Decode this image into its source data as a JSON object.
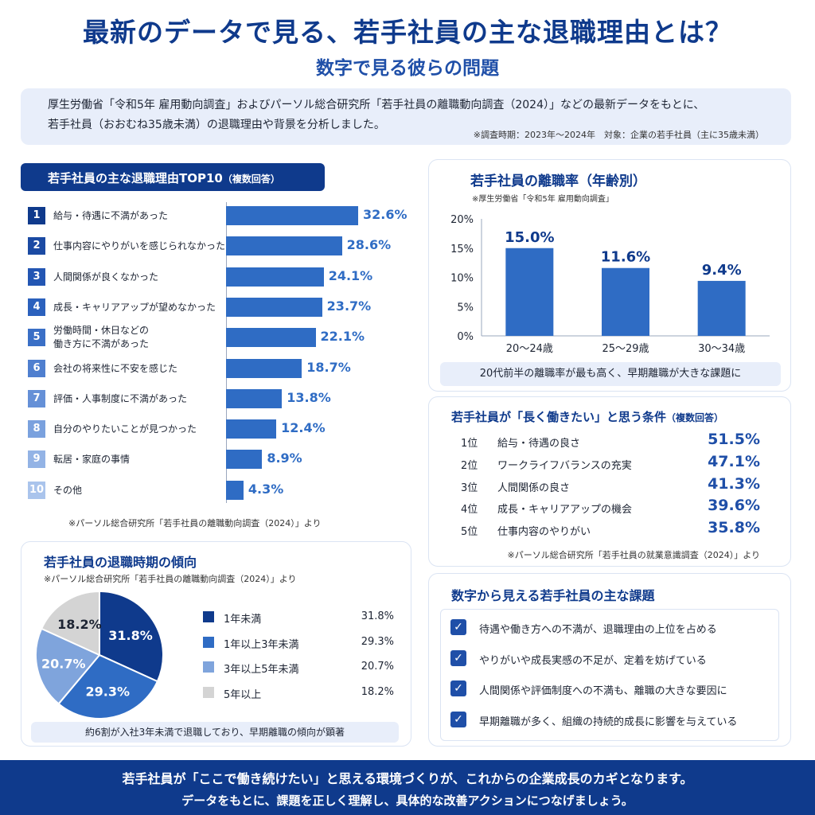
{
  "header": {
    "title": "最新のデータで見る、若手社員の主な退職理由とは？",
    "subtitle": "数字で見る彼らの問題"
  },
  "intro": {
    "line1": "厚生労働省「令和5年 雇用動向調査」およびパーソル総合研究所「若手社員の離職動向調査（2024）」などの最新データをもとに、",
    "line2": "若手社員（おおむね35歳未満）の退職理由や背景を分析しました。",
    "note": "※調査時期：2023年〜2024年　対象：企業の若手社員（主に35歳未満）"
  },
  "top10": {
    "heading": "若手社員の主な退職理由TOP10",
    "heading_note": "（複数回答）",
    "source": "※パーソル総合研究所「若手社員の離職動向調査（2024）」より"
  },
  "age_panel": {
    "title": "若手社員の離職率（年齢別）",
    "source": "※厚生労働省「令和5年 雇用動向調査」",
    "summary": "20代前半の離職率が最も高く、早期離職が大きな課題に"
  },
  "conditions": {
    "title": "若手社員が「長く働きたい」と思う条件",
    "title_note": "（複数回答）",
    "items": [
      {
        "rank": "1位",
        "label": "給与・待遇の良さ",
        "value": "51.5%"
      },
      {
        "rank": "2位",
        "label": "ワークライフバランスの充実",
        "value": "47.1%"
      },
      {
        "rank": "3位",
        "label": "人間関係の良さ",
        "value": "41.3%"
      },
      {
        "rank": "4位",
        "label": "成長・キャリアアップの機会",
        "value": "39.6%"
      },
      {
        "rank": "5位",
        "label": "仕事内容のやりがい",
        "value": "35.8%"
      }
    ],
    "source": "※パーソル総合研究所「若手社員の就業意識調査（2024）」より"
  },
  "timing": {
    "title": "若手社員の退職時期の傾向",
    "source": "※パーソル総合研究所「若手社員の離職動向調査（2024）」より",
    "summary": "約6割が入社3年未満で退職しており、早期離職の傾向が顕著"
  },
  "issues": {
    "title": "数字から見える若手社員の主な課題",
    "check_icon": "✓",
    "items": [
      "待遇や働き方への不満が、退職理由の上位を占める",
      "やりがいや成長実感の不足が、定着を妨げている",
      "人間関係や評価制度への不満も、離職の大きな要因に",
      "早期離職が多く、組織の持続的成長に影響を与えている"
    ]
  },
  "footer": {
    "line1": "若手社員が「ここで働き続けたい」と思える環境づくりが、これからの企業成長のカギとなります。",
    "line2": "データをもとに、課題を正しく理解し、具体的な改善アクションにつなげましょう。"
  },
  "colors": {
    "navy": "#0f3a8c",
    "bar_blue": "#2f6cc4",
    "pie_1": "#0f3a8c",
    "pie_2": "#2f6cc4",
    "pie_3": "#7fa4dc",
    "pie_4": "#d4d4d4"
  },
  "chart_data": [
    {
      "type": "bar",
      "orientation": "horizontal",
      "categories": [
        "給与・待遇に不満があった",
        "仕事内容にやりがいを感じられなかった",
        "人間関係が良くなかった",
        "成長・キャリアアップが望めなかった",
        "労働時間・休日などの\n働き方に不満があった",
        "会社の将来性に不安を感じた",
        "評価・人事制度に不満があった",
        "自分のやりたいことが見つかった",
        "転居・家庭の事情",
        "その他"
      ],
      "rank_labels": [
        "1",
        "2",
        "3",
        "4",
        "5",
        "6",
        "7",
        "8",
        "9",
        "10"
      ],
      "values": [
        32.6,
        28.6,
        24.1,
        23.7,
        22.1,
        18.7,
        13.8,
        12.4,
        8.9,
        4.3
      ],
      "data_labels": [
        "32.6%",
        "28.6%",
        "24.1%",
        "23.7%",
        "22.1%",
        "18.7%",
        "13.8%",
        "12.4%",
        "8.9%",
        "4.3%"
      ]
    },
    {
      "type": "bar",
      "categories": [
        "20〜24歳",
        "25〜29歳",
        "30〜34歳"
      ],
      "values": [
        15.0,
        11.6,
        9.4
      ],
      "data_labels": [
        "15.0%",
        "11.6%",
        "9.4%"
      ],
      "ylim": [
        0,
        20
      ],
      "yticks": [
        "0%",
        "5%",
        "10%",
        "15%",
        "20%"
      ],
      "grid": false
    },
    {
      "type": "pie",
      "labels": [
        "1年未満",
        "1年以上3年未満",
        "3年以上5年未満",
        "5年以上"
      ],
      "values": [
        31.8,
        29.3,
        20.7,
        18.2
      ],
      "data_labels": [
        "31.8%",
        "29.3%",
        "20.7%",
        "18.2%"
      ],
      "legend": "right"
    }
  ]
}
